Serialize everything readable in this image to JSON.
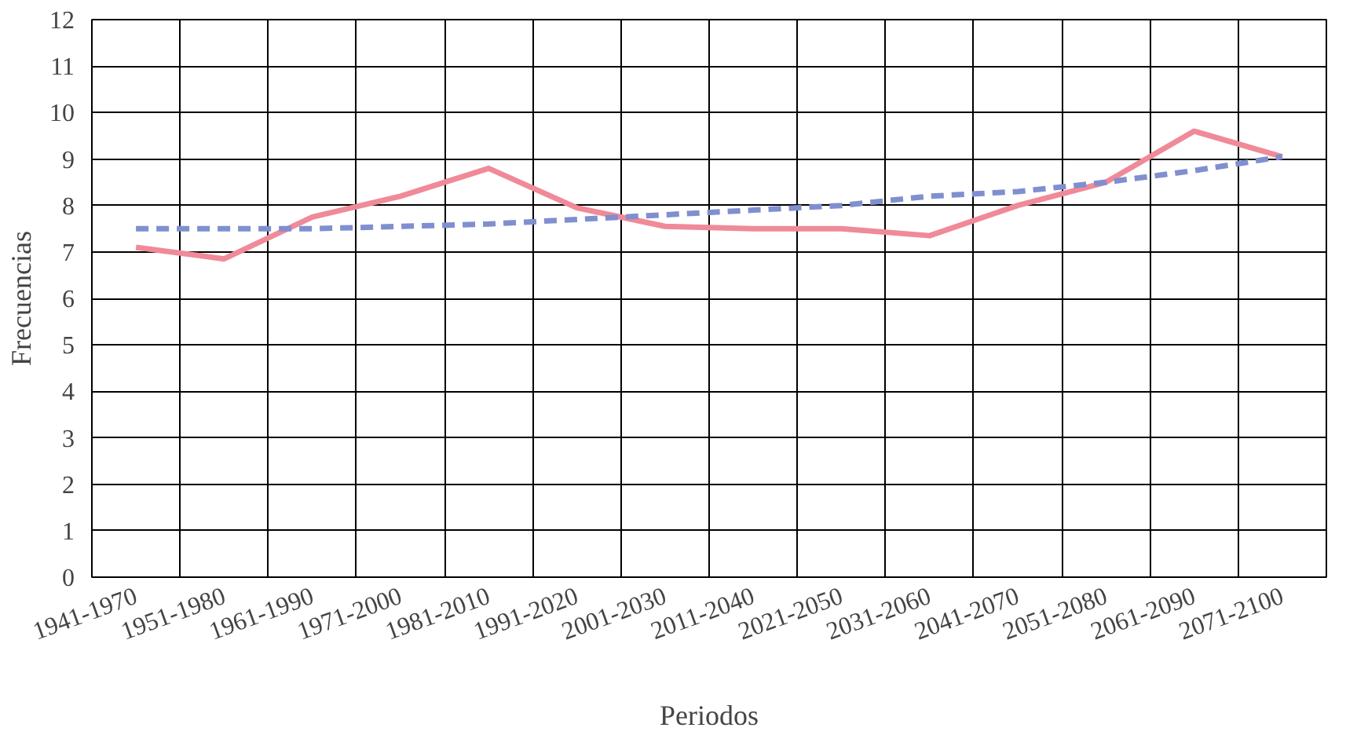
{
  "chart_data": {
    "type": "line",
    "xlabel": "Periodos",
    "ylabel": "Frecuencias",
    "categories": [
      "1941-1970",
      "1951-1980",
      "1961-1990",
      "1971-2000",
      "1981-2010",
      "1991-2020",
      "2001-2030",
      "2011-2040",
      "2021-2050",
      "2031-2060",
      "2041-2070",
      "2051-2080",
      "2061-2090",
      "2071-2100"
    ],
    "series": [
      {
        "color": "#f08a98",
        "line_style": "solid",
        "values": [
          7.1,
          6.85,
          7.75,
          8.2,
          8.8,
          7.95,
          7.55,
          7.5,
          7.5,
          7.35,
          8.0,
          8.5,
          9.6,
          9.05
        ]
      },
      {
        "color": "#7f8fcf",
        "line_style": "dashed",
        "values": [
          7.5,
          7.5,
          7.5,
          7.55,
          7.6,
          7.7,
          7.8,
          7.9,
          8.0,
          8.2,
          8.3,
          8.5,
          8.75,
          9.05
        ]
      }
    ],
    "ylim": [
      0,
      12
    ],
    "yticks": [
      0,
      1,
      2,
      3,
      4,
      5,
      6,
      7,
      8,
      9,
      10,
      11,
      12
    ],
    "grid": true
  }
}
